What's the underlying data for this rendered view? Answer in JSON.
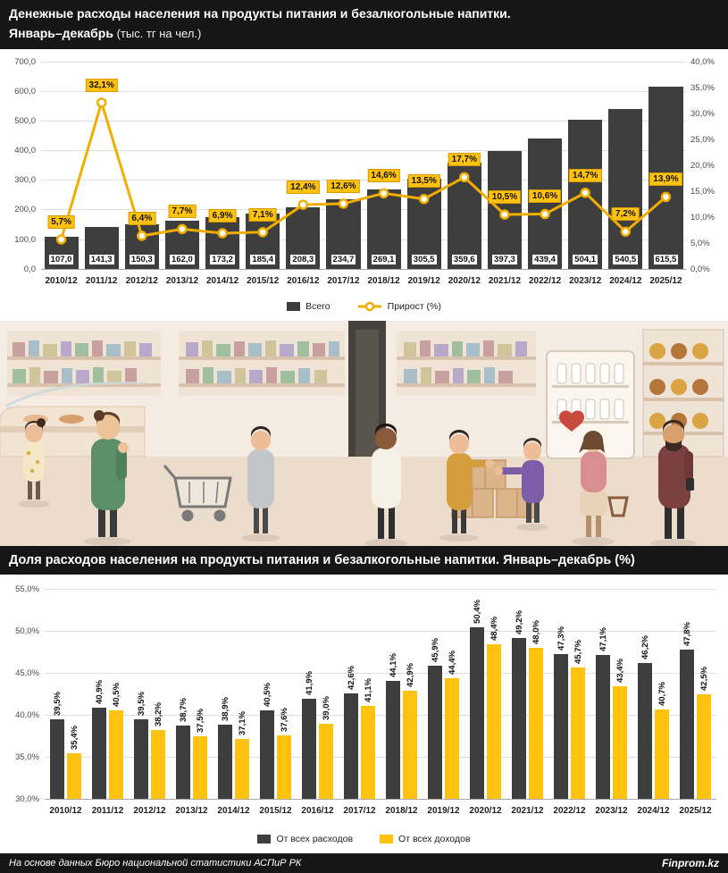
{
  "colors": {
    "bar_dark": "#3e3e3e",
    "bar_yellow": "#ffc20e",
    "line_yellow": "#f2ae00",
    "header_bg": "#161616",
    "grid": "#dedede"
  },
  "header1": {
    "line1": "Денежные расходы населения на продукты питания и безалкогольные напитки.",
    "line2_bold": "Январь–декабрь",
    "line2_rest": " (тыс. тг на чел.)"
  },
  "header2": {
    "title": "Доля расходов населения на продукты питания и безалкогольные напитки. Январь–декабрь (%)"
  },
  "footer": {
    "source": "На основе данных Бюро национальной статистики АСПиР РК",
    "brand": "Finprom.kz"
  },
  "chart_data": [
    {
      "type": "bar",
      "subtype": "combo-bar-line",
      "title": "Денежные расходы населения на продукты питания и безалкогольные напитки. Январь–декабрь (тыс. тг на чел.)",
      "categories": [
        "2010/12",
        "2011/12",
        "2012/12",
        "2013/12",
        "2014/12",
        "2015/12",
        "2016/12",
        "2017/12",
        "2018/12",
        "2019/12",
        "2020/12",
        "2021/12",
        "2022/12",
        "2023/12",
        "2024/12",
        "2025/12"
      ],
      "series": [
        {
          "name": "Всего",
          "type": "bar",
          "values": [
            107.0,
            141.3,
            150.3,
            162.0,
            173.2,
            185.4,
            208.3,
            234.7,
            269.1,
            305.5,
            359.6,
            397.3,
            439.4,
            504.1,
            540.5,
            615.5
          ],
          "labels": [
            "107,0",
            "141,3",
            "150,3",
            "162,0",
            "173,2",
            "185,4",
            "208,3",
            "234,7",
            "269,1",
            "305,5",
            "359,6",
            "397,3",
            "439,4",
            "504,1",
            "540,5",
            "615,5"
          ]
        },
        {
          "name": "Прирост (%)",
          "type": "line",
          "values": [
            5.7,
            32.1,
            6.4,
            7.7,
            6.9,
            7.1,
            12.4,
            12.6,
            14.6,
            13.5,
            17.7,
            10.5,
            10.6,
            14.7,
            7.2,
            13.9
          ],
          "labels": [
            "5,7%",
            "32,1%",
            "6,4%",
            "7,7%",
            "6,9%",
            "7,1%",
            "12,4%",
            "12,6%",
            "14,6%",
            "13,5%",
            "17,7%",
            "10,5%",
            "10,6%",
            "14,7%",
            "7,2%",
            "13,9%"
          ]
        }
      ],
      "y_left": {
        "min": 0,
        "max": 700,
        "ticks": [
          "0,0",
          "100,0",
          "200,0",
          "300,0",
          "400,0",
          "500,0",
          "600,0",
          "700,0"
        ]
      },
      "y_right": {
        "min": 0,
        "max": 40,
        "ticks": [
          "0,0%",
          "5,0%",
          "10,0%",
          "15,0%",
          "20,0%",
          "25,0%",
          "30,0%",
          "35,0%",
          "40,0%"
        ]
      },
      "legend_position": "bottom",
      "grid": true
    },
    {
      "type": "bar",
      "subtype": "grouped",
      "title": "Доля расходов населения на продукты питания и безалкогольные напитки. Январь–декабрь (%)",
      "categories": [
        "2010/12",
        "2011/12",
        "2012/12",
        "2013/12",
        "2014/12",
        "2015/12",
        "2016/12",
        "2017/12",
        "2018/12",
        "2019/12",
        "2020/12",
        "2021/12",
        "2022/12",
        "2023/12",
        "2024/12",
        "2025/12"
      ],
      "series": [
        {
          "name": "От всех расходов",
          "values": [
            39.5,
            40.9,
            39.5,
            38.7,
            38.9,
            40.5,
            41.9,
            42.6,
            44.1,
            45.9,
            50.4,
            49.2,
            47.3,
            47.1,
            46.2,
            47.8
          ],
          "labels": [
            "39,5%",
            "40,9%",
            "39,5%",
            "38,7%",
            "38,9%",
            "40,5%",
            "41,9%",
            "42,6%",
            "44,1%",
            "45,9%",
            "50,4%",
            "49,2%",
            "47,3%",
            "47,1%",
            "46,2%",
            "47,8%"
          ]
        },
        {
          "name": "От всех доходов",
          "values": [
            35.4,
            40.5,
            38.2,
            37.5,
            37.1,
            37.6,
            39.0,
            41.1,
            42.9,
            44.4,
            48.4,
            48.0,
            45.7,
            43.4,
            40.7,
            42.5
          ],
          "labels": [
            "35,4%",
            "40,5%",
            "38,2%",
            "37,5%",
            "37,1%",
            "37,6%",
            "39,0%",
            "41,1%",
            "42,9%",
            "44,4%",
            "48,4%",
            "48,0%",
            "45,7%",
            "43,4%",
            "40,7%",
            "42,5%"
          ]
        }
      ],
      "ylim": [
        30,
        55
      ],
      "y_ticks": [
        "30,0%",
        "35,0%",
        "40,0%",
        "45,0%",
        "50,0%",
        "55,0%"
      ],
      "legend_position": "bottom",
      "grid": true
    }
  ]
}
